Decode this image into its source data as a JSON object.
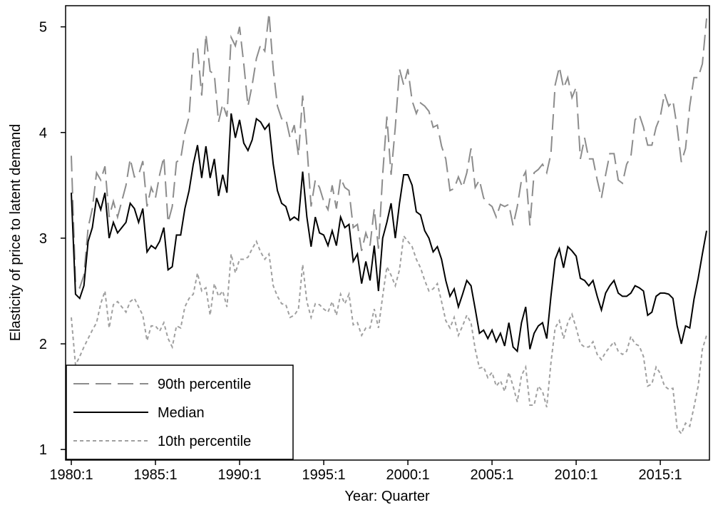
{
  "chart_data": {
    "type": "line",
    "xlabel": "Year: Quarter",
    "ylabel": "Elasticity of price to latent demand",
    "x": [
      1980,
      1980.25,
      1980.5,
      1980.75,
      1981,
      1981.25,
      1981.5,
      1981.75,
      1982,
      1982.25,
      1982.5,
      1982.75,
      1983,
      1983.25,
      1983.5,
      1983.75,
      1984,
      1984.25,
      1984.5,
      1984.75,
      1985,
      1985.25,
      1985.5,
      1985.75,
      1986,
      1986.25,
      1986.5,
      1986.75,
      1987,
      1987.25,
      1987.5,
      1987.75,
      1988,
      1988.25,
      1988.5,
      1988.75,
      1989,
      1989.25,
      1989.5,
      1989.75,
      1990,
      1990.25,
      1990.5,
      1990.75,
      1991,
      1991.25,
      1991.5,
      1991.75,
      1992,
      1992.25,
      1992.5,
      1992.75,
      1993,
      1993.25,
      1993.5,
      1993.75,
      1994,
      1994.25,
      1994.5,
      1994.75,
      1995,
      1995.25,
      1995.5,
      1995.75,
      1996,
      1996.25,
      1996.5,
      1996.75,
      1997,
      1997.25,
      1997.5,
      1997.75,
      1998,
      1998.25,
      1998.5,
      1998.75,
      1999,
      1999.25,
      1999.5,
      1999.75,
      2000,
      2000.25,
      2000.5,
      2000.75,
      2001,
      2001.25,
      2001.5,
      2001.75,
      2002,
      2002.25,
      2002.5,
      2002.75,
      2003,
      2003.25,
      2003.5,
      2003.75,
      2004,
      2004.25,
      2004.5,
      2004.75,
      2005,
      2005.25,
      2005.5,
      2005.75,
      2006,
      2006.25,
      2006.5,
      2006.75,
      2007,
      2007.25,
      2007.5,
      2007.75,
      2008,
      2008.25,
      2008.5,
      2008.75,
      2009,
      2009.25,
      2009.5,
      2009.75,
      2010,
      2010.25,
      2010.5,
      2010.75,
      2011,
      2011.25,
      2011.5,
      2011.75,
      2012,
      2012.25,
      2012.5,
      2012.75,
      2013,
      2013.25,
      2013.5,
      2013.75,
      2014,
      2014.25,
      2014.5,
      2014.75,
      2015,
      2015.25,
      2015.5,
      2015.75,
      2016,
      2016.25,
      2016.5,
      2016.75,
      2017,
      2017.25,
      2017.5,
      2017.75
    ],
    "series": [
      {
        "name": "90th percentile",
        "color": "#8c8c8c",
        "dash": "long",
        "values": [
          3.78,
          2.58,
          2.53,
          2.65,
          3.1,
          3.28,
          3.62,
          3.55,
          3.68,
          3.2,
          3.35,
          3.2,
          3.35,
          3.5,
          3.75,
          3.58,
          3.6,
          3.73,
          3.3,
          3.48,
          3.38,
          3.6,
          3.77,
          3.15,
          3.3,
          3.72,
          3.75,
          4.0,
          4.15,
          4.75,
          4.8,
          4.35,
          4.93,
          4.58,
          4.55,
          4.1,
          4.27,
          4.15,
          4.9,
          4.82,
          5.0,
          4.65,
          4.25,
          4.45,
          4.7,
          4.83,
          4.77,
          5.13,
          4.6,
          4.25,
          4.13,
          4.13,
          3.95,
          4.07,
          3.78,
          4.35,
          3.88,
          3.3,
          3.55,
          3.48,
          3.35,
          3.27,
          3.5,
          3.28,
          3.57,
          3.48,
          3.45,
          3.1,
          3.13,
          2.88,
          3.05,
          2.93,
          3.28,
          2.9,
          3.6,
          4.15,
          3.6,
          4.05,
          4.6,
          4.45,
          4.6,
          4.3,
          4.18,
          4.28,
          4.25,
          4.2,
          4.05,
          4.07,
          3.87,
          3.75,
          3.45,
          3.47,
          3.58,
          3.48,
          3.62,
          3.85,
          3.48,
          3.55,
          3.38,
          3.33,
          3.3,
          3.2,
          3.32,
          3.3,
          3.32,
          3.12,
          3.3,
          3.55,
          3.63,
          3.12,
          3.62,
          3.65,
          3.7,
          3.62,
          3.8,
          4.45,
          4.62,
          4.42,
          4.52,
          4.33,
          4.43,
          3.75,
          3.95,
          3.75,
          3.75,
          3.55,
          3.38,
          3.6,
          3.8,
          3.8,
          3.55,
          3.52,
          3.7,
          3.77,
          4.12,
          4.17,
          4.05,
          3.88,
          3.88,
          4.05,
          4.15,
          4.37,
          4.25,
          4.3,
          4.05,
          3.72,
          3.85,
          4.25,
          4.52,
          4.52,
          4.65,
          5.08
        ]
      },
      {
        "name": "Median",
        "color": "#000000",
        "dash": "solid",
        "values": [
          3.43,
          2.47,
          2.43,
          2.55,
          2.97,
          3.1,
          3.38,
          3.27,
          3.43,
          3.0,
          3.15,
          3.05,
          3.1,
          3.15,
          3.33,
          3.28,
          3.15,
          3.28,
          2.87,
          2.93,
          2.9,
          2.97,
          3.1,
          2.7,
          2.73,
          3.03,
          3.03,
          3.28,
          3.45,
          3.7,
          3.88,
          3.57,
          3.87,
          3.57,
          3.75,
          3.4,
          3.6,
          3.43,
          4.18,
          3.95,
          4.12,
          3.9,
          3.83,
          3.93,
          4.13,
          4.1,
          4.03,
          4.08,
          3.7,
          3.45,
          3.33,
          3.3,
          3.17,
          3.2,
          3.17,
          3.63,
          3.2,
          2.92,
          3.2,
          3.05,
          3.03,
          2.93,
          3.07,
          2.93,
          3.2,
          3.1,
          3.13,
          2.78,
          2.85,
          2.57,
          2.78,
          2.6,
          2.93,
          2.5,
          3.0,
          3.15,
          3.33,
          3.0,
          3.33,
          3.6,
          3.6,
          3.5,
          3.25,
          3.22,
          3.07,
          3.0,
          2.87,
          2.92,
          2.8,
          2.6,
          2.45,
          2.52,
          2.35,
          2.47,
          2.6,
          2.55,
          2.33,
          2.1,
          2.13,
          2.05,
          2.13,
          2.02,
          2.1,
          1.98,
          2.2,
          1.97,
          1.93,
          2.2,
          2.35,
          1.95,
          2.1,
          2.17,
          2.2,
          2.05,
          2.45,
          2.8,
          2.9,
          2.72,
          2.92,
          2.88,
          2.83,
          2.62,
          2.6,
          2.55,
          2.6,
          2.45,
          2.32,
          2.48,
          2.55,
          2.6,
          2.48,
          2.45,
          2.45,
          2.48,
          2.55,
          2.53,
          2.5,
          2.27,
          2.3,
          2.45,
          2.48,
          2.48,
          2.47,
          2.43,
          2.17,
          2.0,
          2.17,
          2.15,
          2.42,
          2.62,
          2.85,
          3.07
        ]
      },
      {
        "name": "10th percentile",
        "color": "#a0a0a0",
        "dash": "short",
        "values": [
          2.25,
          1.8,
          1.88,
          1.97,
          2.05,
          2.13,
          2.2,
          2.38,
          2.5,
          2.15,
          2.37,
          2.4,
          2.35,
          2.3,
          2.4,
          2.43,
          2.35,
          2.27,
          2.03,
          2.17,
          2.17,
          2.12,
          2.2,
          2.05,
          1.97,
          2.17,
          2.15,
          2.35,
          2.43,
          2.47,
          2.67,
          2.5,
          2.53,
          2.27,
          2.57,
          2.45,
          2.5,
          2.35,
          2.85,
          2.67,
          2.8,
          2.8,
          2.82,
          2.9,
          2.97,
          2.87,
          2.8,
          2.85,
          2.55,
          2.45,
          2.38,
          2.37,
          2.25,
          2.27,
          2.33,
          2.75,
          2.4,
          2.25,
          2.38,
          2.37,
          2.33,
          2.3,
          2.4,
          2.27,
          2.47,
          2.38,
          2.47,
          2.18,
          2.2,
          2.08,
          2.15,
          2.15,
          2.33,
          2.15,
          2.45,
          2.73,
          2.65,
          2.55,
          2.7,
          3.02,
          2.97,
          2.92,
          2.8,
          2.72,
          2.6,
          2.5,
          2.52,
          2.57,
          2.4,
          2.22,
          2.15,
          2.25,
          2.08,
          2.17,
          2.27,
          2.2,
          1.95,
          1.77,
          1.78,
          1.68,
          1.73,
          1.6,
          1.65,
          1.55,
          1.73,
          1.6,
          1.45,
          1.7,
          1.78,
          1.42,
          1.42,
          1.6,
          1.55,
          1.4,
          1.82,
          2.15,
          2.22,
          2.05,
          2.2,
          2.28,
          2.15,
          2.0,
          1.97,
          1.97,
          2.02,
          1.9,
          1.85,
          1.92,
          1.97,
          2.02,
          1.93,
          1.9,
          1.93,
          2.07,
          2.0,
          1.98,
          1.88,
          1.6,
          1.62,
          1.78,
          1.72,
          1.6,
          1.57,
          1.58,
          1.2,
          1.15,
          1.25,
          1.22,
          1.4,
          1.6,
          1.95,
          2.08
        ]
      }
    ],
    "xlim": [
      1979.66,
      2017.92
    ],
    "xticks": [
      {
        "value": 1980,
        "label": "1980:1"
      },
      {
        "value": 1985,
        "label": "1985:1"
      },
      {
        "value": 1990,
        "label": "1990:1"
      },
      {
        "value": 1995,
        "label": "1995:1"
      },
      {
        "value": 2000,
        "label": "2000:1"
      },
      {
        "value": 2005,
        "label": "2005:1"
      },
      {
        "value": 2010,
        "label": "2010:1"
      },
      {
        "value": 2015,
        "label": "2015:1"
      }
    ],
    "ylim": [
      0.9,
      5.2
    ],
    "yticks": [
      1,
      2,
      3,
      4,
      5
    ],
    "grid": false,
    "legend": "lower left"
  }
}
